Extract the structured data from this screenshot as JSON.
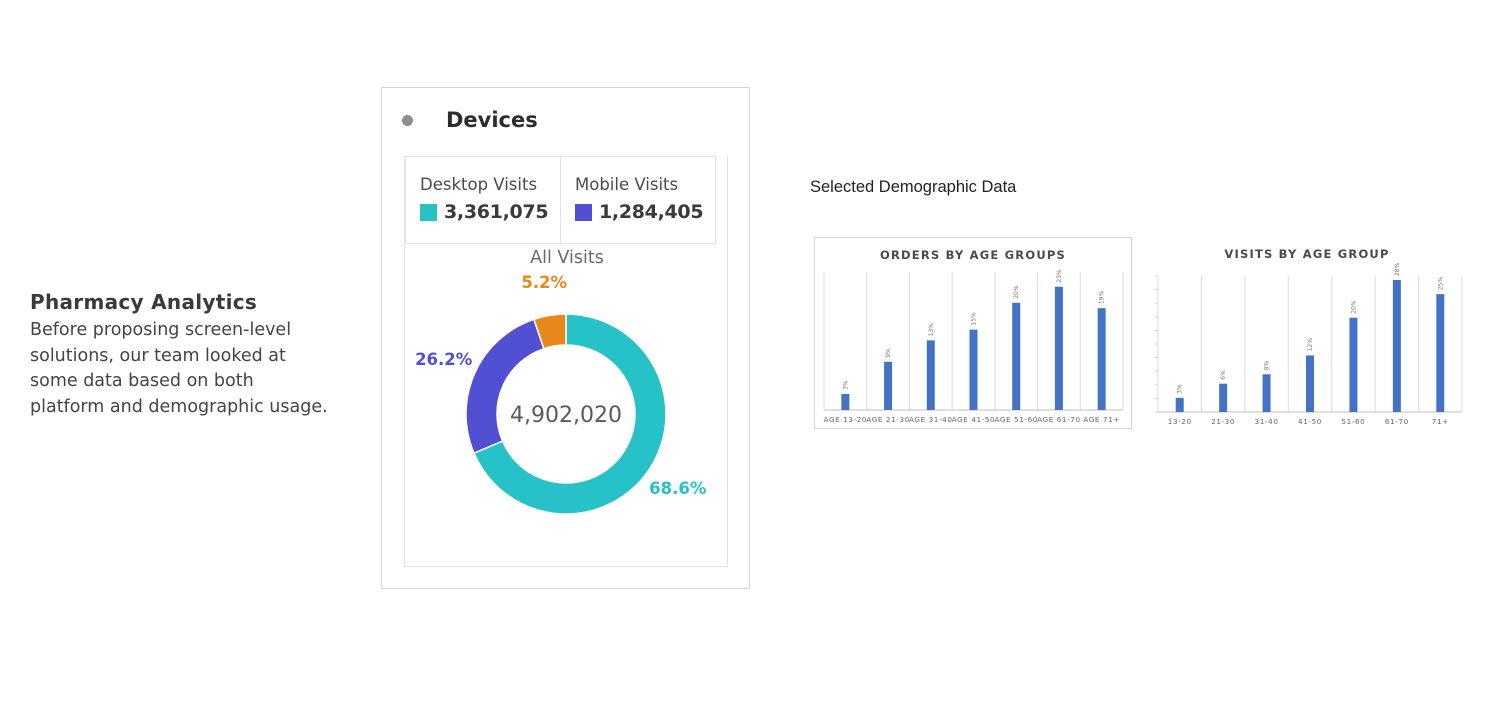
{
  "intro": {
    "title": "Pharmacy Analytics",
    "line1": "Before proposing screen-level",
    "line2": "solutions, our team looked at",
    "line3": "some data based on both",
    "line4": "platform and demographic usage."
  },
  "devices": {
    "title": "Devices",
    "desktop_label": "Desktop Visits",
    "desktop_value": "3,361,075",
    "mobile_label": "Mobile Visits",
    "mobile_value": "1,284,405",
    "donut_title": "All Visits",
    "total": "4,902,020"
  },
  "demographic": {
    "title": "Selected Demographic Data"
  },
  "colors": {
    "desktop": "#27c2c7",
    "mobile": "#5250d2",
    "other": "#e8881c",
    "bar": "#4472c4"
  },
  "chart_data": [
    {
      "type": "pie",
      "title": "All Visits",
      "categories": [
        "Desktop",
        "Mobile",
        "Other"
      ],
      "values": [
        68.6,
        26.2,
        5.2
      ],
      "labels": [
        "68.6%",
        "26.2%",
        "5.2%"
      ],
      "center_label": "4,902,020"
    },
    {
      "type": "bar",
      "title": "ORDERS BY AGE GROUPS",
      "categories": [
        "AGE 13-20",
        "AGE 21-30",
        "AGE 31-40",
        "AGE 41-50",
        "AGE 51-60",
        "AGE 61-70",
        "AGE 71+"
      ],
      "values": [
        3,
        9,
        13,
        15,
        20,
        23,
        19
      ],
      "labels": [
        "3%",
        "9%",
        "13%",
        "15%",
        "20%",
        "23%",
        "19%"
      ],
      "ylim": [
        0,
        25
      ]
    },
    {
      "type": "bar",
      "title": "VISITS BY AGE GROUP",
      "categories": [
        "13-20",
        "21-30",
        "31-40",
        "41-50",
        "51-60",
        "61-70",
        "71+"
      ],
      "values": [
        3,
        6,
        8,
        12,
        20,
        28,
        25
      ],
      "labels": [
        "3%",
        "6%",
        "8%",
        "12%",
        "20%",
        "28%",
        "25%"
      ],
      "ylim": [
        0,
        28
      ]
    }
  ]
}
